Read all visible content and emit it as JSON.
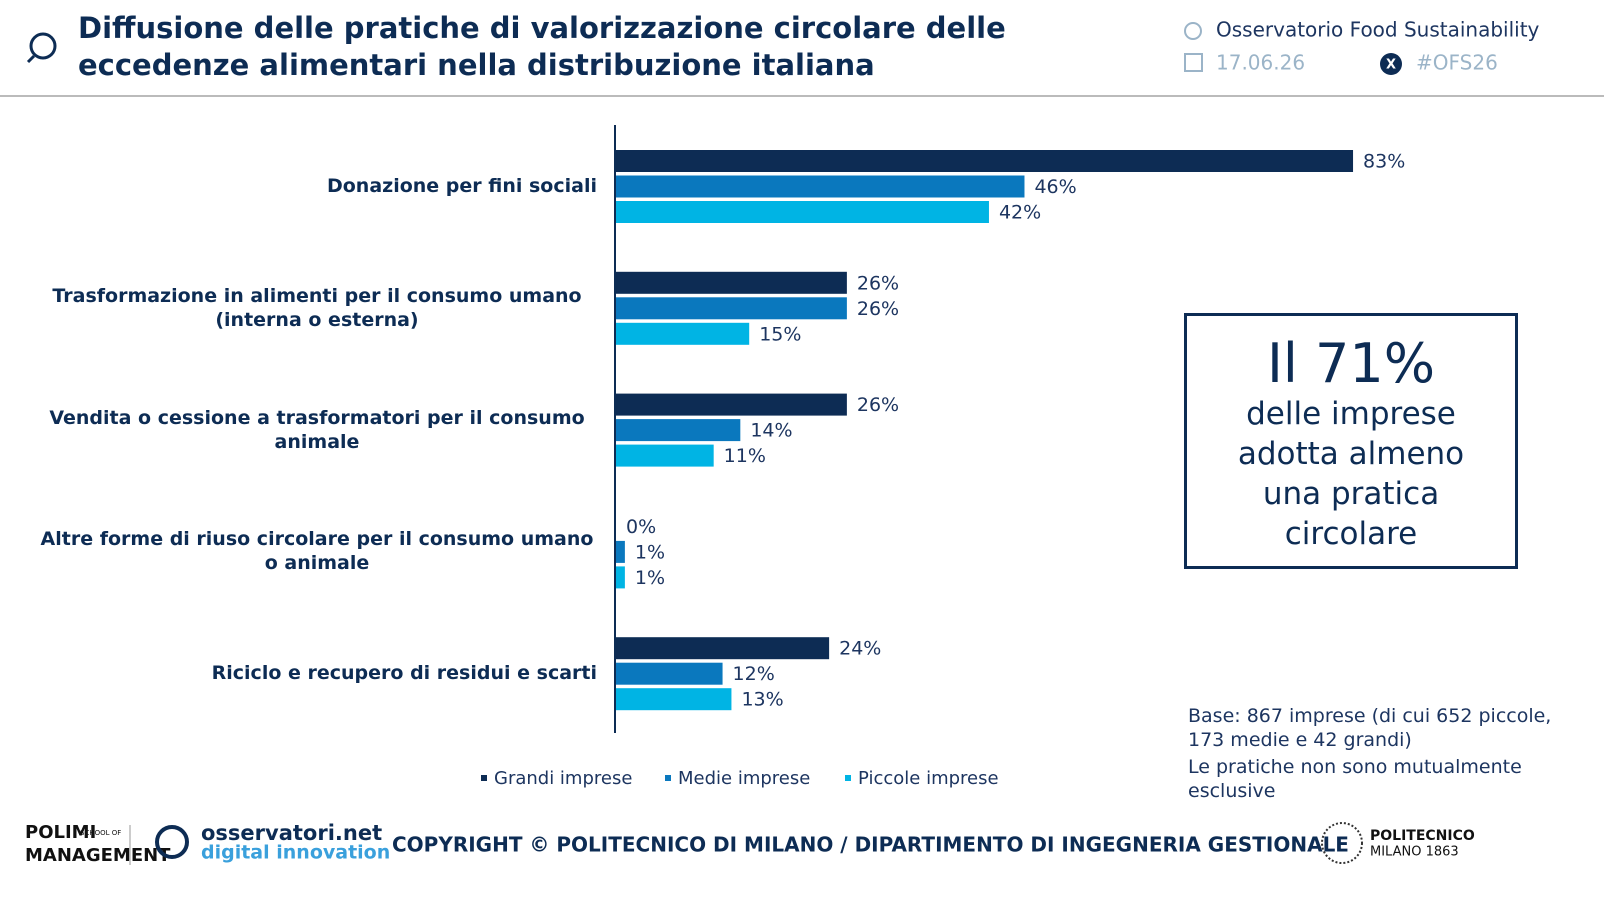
{
  "header": {
    "title": "Diffusione delle pratiche di valorizzazione circolare delle eccedenze alimentari nella distribuzione italiana",
    "observatory": "Osservatorio Food Sustainability",
    "date": "17.06.26",
    "hashtag": "#OFS26"
  },
  "chart_data": {
    "type": "hbar",
    "categories": [
      "Donazione per fini sociali",
      "Trasformazione in alimenti per il consumo umano (interna o esterna)",
      "Vendita o cessione a trasformatori per il consumo animale",
      "Altre forme di riuso circolare per il consumo umano o animale",
      "Riciclo e recupero di residui e scarti"
    ],
    "series": [
      {
        "name": "Grandi imprese",
        "color": "#0d2c54",
        "values": [
          83,
          26,
          26,
          0,
          24
        ],
        "value_labels": [
          "83%",
          "26%",
          "26%",
          "0%",
          "24%"
        ]
      },
      {
        "name": "Medie imprese",
        "color": "#0a78be",
        "values": [
          46,
          26,
          14,
          1,
          12
        ],
        "value_labels": [
          "46%",
          "26%",
          "14%",
          "1%",
          "12%"
        ]
      },
      {
        "name": "Piccole imprese",
        "color": "#00b4e4",
        "values": [
          42,
          15,
          11,
          1,
          13
        ],
        "value_labels": [
          "42%",
          "15%",
          "11%",
          "1%",
          "13%"
        ]
      }
    ],
    "xlim": [
      0,
      100
    ]
  },
  "callout": {
    "headline": "Il 71%",
    "text": "delle imprese adotta almeno una pratica circolare"
  },
  "notes": [
    "Base: 867 imprese (di cui 652 piccole, 173 medie e 42 grandi)",
    "Le pratiche non sono mutualmente esclusive"
  ],
  "footer": {
    "polimi": "POLIMI",
    "school": "SCHOOL OF",
    "management": "MANAGEMENT",
    "osservatori": "osservatori.net",
    "digital": "digital innovation",
    "copyright": "COPYRIGHT © POLITECNICO DI MILANO / DIPARTIMENTO DI INGEGNERIA GESTIONALE",
    "politecnico": "POLITECNICO",
    "milano": "MILANO 1863"
  }
}
